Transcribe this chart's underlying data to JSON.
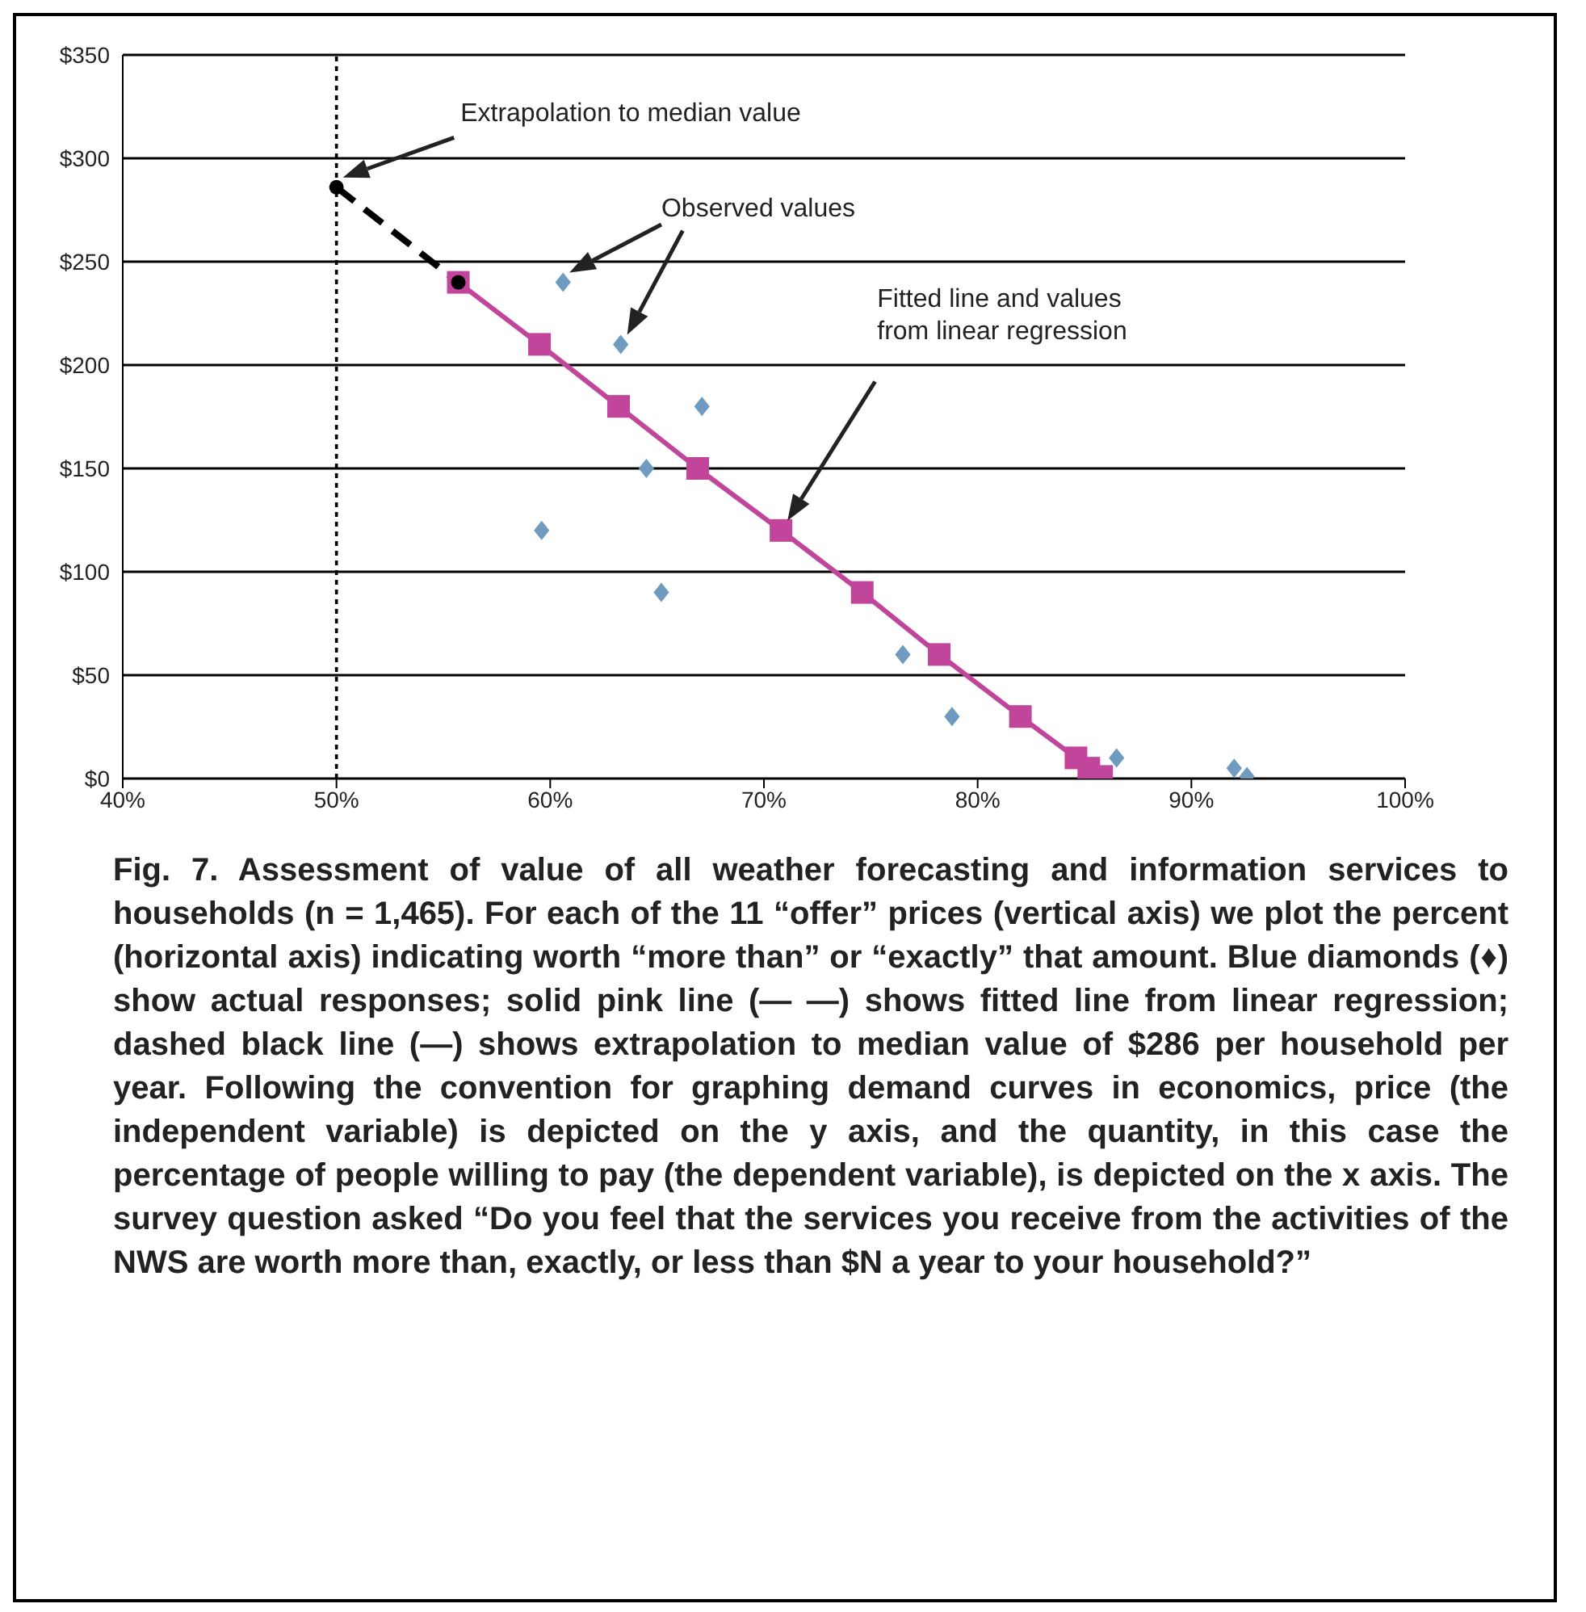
{
  "chart_data": {
    "type": "scatter",
    "xlim": [
      40,
      100
    ],
    "xticks": [
      {
        "value": 40,
        "label": "40%"
      },
      {
        "value": 50,
        "label": "50%"
      },
      {
        "value": 60,
        "label": "60%"
      },
      {
        "value": 70,
        "label": "70%"
      },
      {
        "value": 80,
        "label": "80%"
      },
      {
        "value": 90,
        "label": "90%"
      },
      {
        "value": 100,
        "label": "100%"
      }
    ],
    "ylim": [
      0,
      350
    ],
    "yticks": [
      {
        "value": 0,
        "label": "$0"
      },
      {
        "value": 50,
        "label": "$50"
      },
      {
        "value": 100,
        "label": "$100"
      },
      {
        "value": 150,
        "label": "$150"
      },
      {
        "value": 200,
        "label": "$200"
      },
      {
        "value": 250,
        "label": "$250"
      },
      {
        "value": 300,
        "label": "$300"
      },
      {
        "value": 350,
        "label": "$350"
      }
    ],
    "grid": "y",
    "legend": false,
    "series": [
      {
        "marker": "diamond",
        "color": "#6f9bc0",
        "x": [
          60.6,
          63.3,
          67.1,
          64.5,
          59.6,
          65.2,
          76.5,
          78.8,
          86.5,
          92.0,
          92.6
        ],
        "values": [
          240,
          210,
          180,
          150,
          120,
          90,
          60,
          30,
          10,
          5,
          1
        ]
      },
      {
        "type": "line",
        "marker": "square",
        "line_style": "solid",
        "color": "#c0459b",
        "x": [
          55.7,
          59.5,
          63.2,
          66.9,
          70.8,
          74.6,
          78.2,
          82.0,
          84.6,
          85.2,
          85.8
        ],
        "values": [
          240,
          210,
          180,
          150,
          120,
          90,
          60,
          30,
          10,
          5,
          1
        ]
      },
      {
        "type": "line",
        "marker": "circle",
        "line_style": "dashed",
        "color": "#000000",
        "x": [
          50,
          55.7
        ],
        "values": [
          286,
          240
        ]
      }
    ],
    "ref_lines": [
      {
        "axis": "x",
        "value": 50,
        "color": "#000000",
        "line_style": "dotted"
      }
    ],
    "annotations": [
      "Extrapolation to median value",
      "Observed values",
      "Fitted line and values from linear regression",
      "Fig. 7. Assessment of value of all weather forecasting and information services to households (n = 1,465). For each of the 11 “offer” prices (vertical axis) we plot the percent (horizontal axis) indicating worth “more than” or “exactly” that amount. Blue diamonds (♦) show actual responses; solid pink line (— —) shows fitted line from linear regression; dashed black line (—) shows extrapolation to median value of $286 per household per year. Following the convention for graphing demand curves in economics, price (the independent variable) is depicted on the y axis, and the quantity, in this case the percentage of people willing to pay (the dependent variable), is depicted on the x axis. The survey question asked “Do you feel that the services you receive from the activities of the NWS are worth more than, exactly, or less than $N a year to your household?”"
    ]
  }
}
